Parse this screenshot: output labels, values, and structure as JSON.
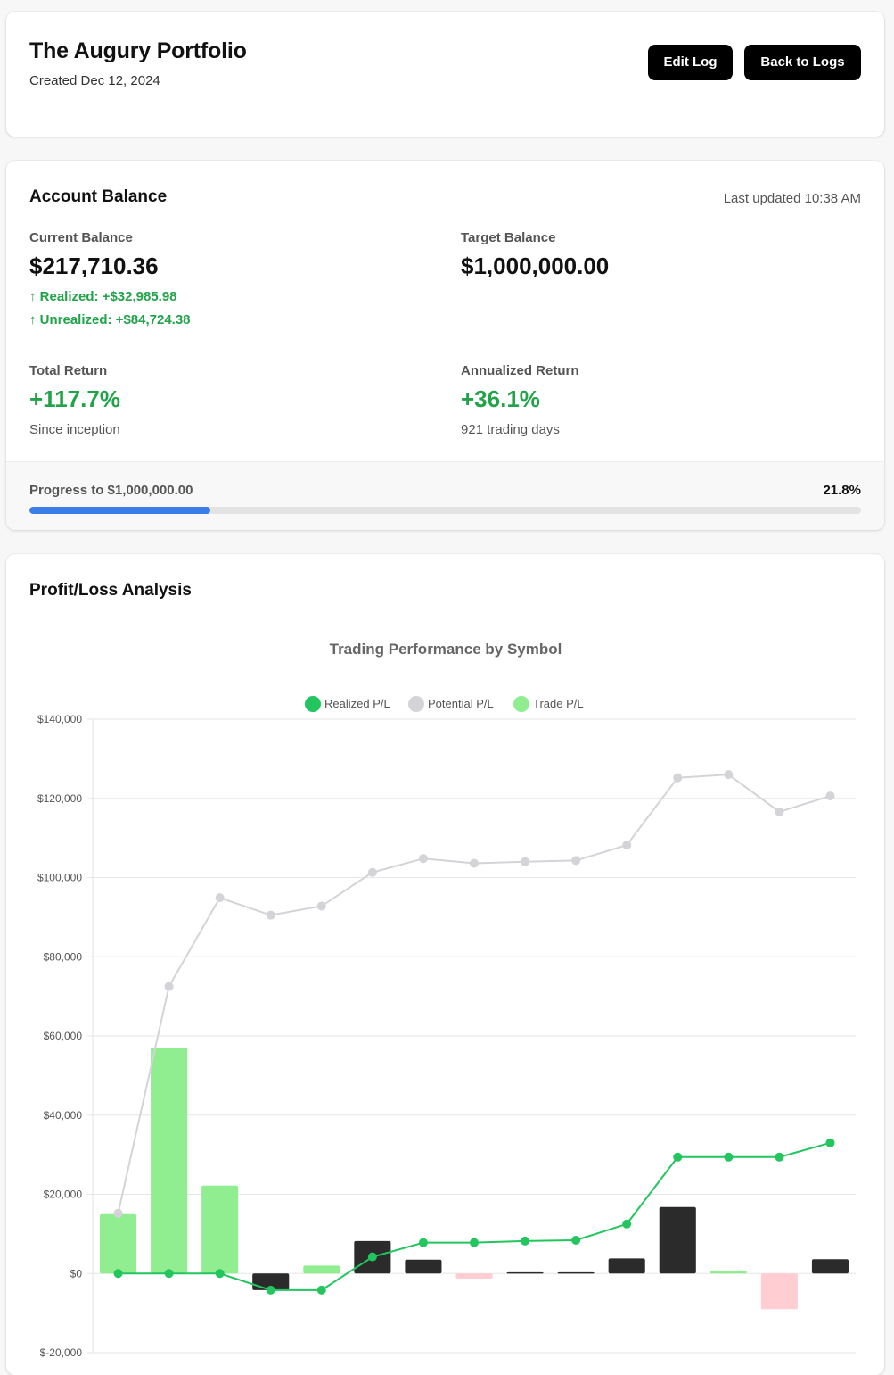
{
  "header": {
    "title": "The Augury Portfolio",
    "created": "Created Dec 12, 2024",
    "edit_label": "Edit Log",
    "back_label": "Back to Logs"
  },
  "balance": {
    "heading": "Account Balance",
    "updated": "Last updated 10:38 AM",
    "current_label": "Current Balance",
    "current_value": "$217,710.36",
    "realized": "↑ Realized: +$32,985.98",
    "unrealized": "↑ Unrealized: +$84,724.38",
    "target_label": "Target Balance",
    "target_value": "$1,000,000.00",
    "total_return_label": "Total Return",
    "total_return_value": "+117.7%",
    "total_return_note": "Since inception",
    "annualized_label": "Annualized Return",
    "annualized_value": "+36.1%",
    "annualized_note": "921 trading days",
    "progress_label": "Progress to $1,000,000.00",
    "progress_pct": "21.8%",
    "progress_fraction": 0.218,
    "progress_color": "#3b7de9"
  },
  "analysis": {
    "heading": "Profit/Loss Analysis"
  },
  "chart_data": {
    "type": "bar",
    "title": "Trading Performance by Symbol",
    "ylim": [
      -20000,
      140000
    ],
    "yticks": [
      140000,
      120000,
      100000,
      80000,
      60000,
      40000,
      20000,
      0,
      -20000
    ],
    "ytick_labels": [
      "$140,000",
      "$120,000",
      "$100,000",
      "$80,000",
      "$60,000",
      "$40,000",
      "$20,000",
      "$0",
      "$-20,000"
    ],
    "grid": true,
    "legend_position": "top",
    "series": [
      {
        "name": "Realized P/L",
        "kind": "line",
        "color": "#22c55e",
        "values": [
          0,
          0,
          0,
          -4200,
          -4200,
          4200,
          7800,
          7800,
          8200,
          8400,
          12500,
          29400,
          29400,
          29400,
          33000
        ]
      },
      {
        "name": "Potential P/L",
        "kind": "line",
        "color": "#d4d4d8",
        "values": [
          15200,
          72500,
          94900,
          90500,
          92800,
          101300,
          104800,
          103600,
          104000,
          104300,
          108200,
          125200,
          126000,
          116600,
          120600
        ]
      },
      {
        "name": "Trade P/L",
        "kind": "bar",
        "color": "#90ee90",
        "values": [
          15000,
          57000,
          22200,
          -4200,
          2000,
          8200,
          3500,
          -1300,
          300,
          300,
          3800,
          16800,
          600,
          -9000,
          3600
        ],
        "bar_colors": [
          "#90ee90",
          "#90ee90",
          "#90ee90",
          "#2b2b2b",
          "#90ee90",
          "#2b2b2b",
          "#2b2b2b",
          "#ffcdd2",
          "#2b2b2b",
          "#2b2b2b",
          "#2b2b2b",
          "#2b2b2b",
          "#90ee90",
          "#ffcdd2",
          "#2b2b2b"
        ]
      }
    ]
  }
}
